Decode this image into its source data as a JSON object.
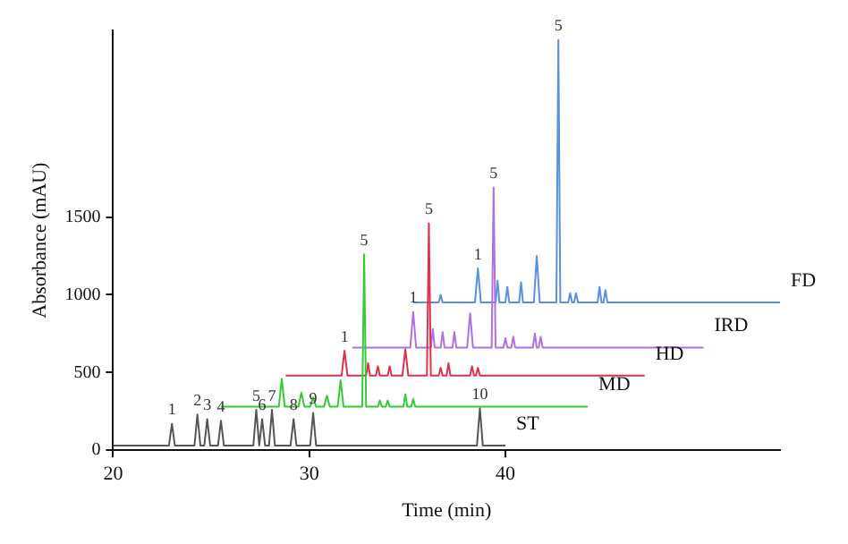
{
  "chart_data": {
    "type": "line",
    "xlabel": "Time (min)",
    "ylabel": "Absorbance (mAU)",
    "xlim": [
      20,
      54
    ],
    "xticks": [
      20,
      30,
      40
    ],
    "ylim": [
      0,
      2700
    ],
    "yticks": [
      0,
      500,
      1000,
      1500
    ],
    "grid": false,
    "legend": false,
    "marker": "none",
    "line_style": "solid",
    "series": [
      {
        "name": "ST",
        "color": "#555555",
        "x": [
          20,
          22.85,
          23,
          23.15,
          24.15,
          24.3,
          24.45,
          24.65,
          24.8,
          24.95,
          25.35,
          25.5,
          25.65,
          27.15,
          27.3,
          27.45,
          27.6,
          27.75,
          27.95,
          28.1,
          28.25,
          29.05,
          29.2,
          29.35,
          30.05,
          30.2,
          30.35,
          38.55,
          38.7,
          38.85,
          40
        ],
        "values": [
          30,
          30,
          170,
          30,
          30,
          230,
          30,
          30,
          200,
          30,
          30,
          190,
          30,
          30,
          260,
          30,
          200,
          30,
          30,
          260,
          30,
          30,
          200,
          30,
          30,
          240,
          30,
          30,
          270,
          30,
          30
        ]
      },
      {
        "name": "MD",
        "color": "#33cc33",
        "x": [
          25.5,
          28.45,
          28.6,
          28.75,
          29.45,
          29.6,
          29.75,
          30.05,
          30.2,
          30.35,
          30.75,
          30.9,
          31.05,
          31.45,
          31.6,
          31.75,
          32.7,
          32.8,
          32.9,
          33.5,
          33.6,
          33.7,
          33.9,
          34.0,
          34.1,
          34.8,
          34.9,
          35.0,
          35.2,
          35.3,
          35.4,
          44.2
        ],
        "values": [
          280,
          280,
          460,
          280,
          280,
          370,
          280,
          280,
          340,
          280,
          280,
          350,
          280,
          280,
          450,
          280,
          280,
          1260,
          280,
          280,
          320,
          280,
          280,
          320,
          280,
          280,
          360,
          280,
          280,
          330,
          280,
          280
        ]
      },
      {
        "name": "HD",
        "color": "#e0304a",
        "x": [
          28.8,
          31.65,
          31.8,
          31.95,
          32.9,
          33.0,
          33.1,
          33.4,
          33.5,
          33.6,
          34.0,
          34.1,
          34.2,
          34.75,
          34.9,
          35.05,
          36.0,
          36.1,
          36.2,
          36.6,
          36.7,
          36.8,
          37.0,
          37.1,
          37.2,
          38.2,
          38.3,
          38.4,
          38.5,
          38.6,
          38.7,
          47.1
        ],
        "values": [
          480,
          480,
          640,
          480,
          480,
          560,
          480,
          480,
          540,
          480,
          480,
          540,
          480,
          480,
          650,
          480,
          480,
          1460,
          480,
          480,
          530,
          480,
          480,
          560,
          480,
          480,
          540,
          480,
          480,
          530,
          480,
          480
        ]
      },
      {
        "name": "IRD",
        "color": "#b070e0",
        "x": [
          32.2,
          35.15,
          35.3,
          35.45,
          36.2,
          36.3,
          36.4,
          36.7,
          36.8,
          36.9,
          37.3,
          37.4,
          37.5,
          38.05,
          38.2,
          38.35,
          39.3,
          39.4,
          39.5,
          39.9,
          40.0,
          40.1,
          40.3,
          40.4,
          40.5,
          41.4,
          41.5,
          41.6,
          41.7,
          41.8,
          41.9,
          50.1
        ],
        "values": [
          660,
          660,
          890,
          660,
          660,
          780,
          660,
          660,
          760,
          660,
          660,
          760,
          660,
          660,
          880,
          660,
          660,
          1690,
          660,
          660,
          720,
          660,
          660,
          730,
          660,
          660,
          750,
          660,
          660,
          730,
          660,
          660
        ]
      },
      {
        "name": "FD",
        "color": "#5b8fe0",
        "x": [
          35.3,
          36.6,
          36.7,
          36.8,
          38.45,
          38.6,
          38.75,
          39.5,
          39.6,
          39.7,
          40.0,
          40.1,
          40.2,
          40.7,
          40.8,
          40.9,
          41.45,
          41.6,
          41.75,
          42.6,
          42.7,
          42.8,
          43.2,
          43.3,
          43.4,
          43.5,
          43.6,
          43.7,
          44.7,
          44.8,
          44.9,
          45.0,
          45.1,
          45.2,
          54
        ],
        "values": [
          950,
          950,
          1000,
          950,
          950,
          1170,
          950,
          950,
          1090,
          950,
          950,
          1050,
          950,
          950,
          1080,
          950,
          950,
          1250,
          950,
          950,
          2640,
          950,
          950,
          1010,
          950,
          950,
          1010,
          950,
          950,
          1050,
          950,
          950,
          1030,
          950,
          950
        ]
      }
    ],
    "annotations": [
      {
        "text": "1",
        "x": 23,
        "y": 170
      },
      {
        "text": "2",
        "x": 24.3,
        "y": 230
      },
      {
        "text": "3",
        "x": 24.8,
        "y": 200
      },
      {
        "text": "4",
        "x": 25.5,
        "y": 190
      },
      {
        "text": "5",
        "x": 27.3,
        "y": 260
      },
      {
        "text": "6",
        "x": 27.6,
        "y": 200
      },
      {
        "text": "7",
        "x": 28.1,
        "y": 260
      },
      {
        "text": "8",
        "x": 29.2,
        "y": 200
      },
      {
        "text": "9",
        "x": 30.2,
        "y": 240
      },
      {
        "text": "10",
        "x": 38.7,
        "y": 270
      },
      {
        "text": "5",
        "x": 32.8,
        "y": 1260
      },
      {
        "text": "5",
        "x": 36.1,
        "y": 1460
      },
      {
        "text": "5",
        "x": 39.4,
        "y": 1690
      },
      {
        "text": "5",
        "x": 42.7,
        "y": 2640
      },
      {
        "text": "1",
        "x": 31.8,
        "y": 640
      },
      {
        "text": "1",
        "x": 35.3,
        "y": 890
      },
      {
        "text": "1",
        "x": 38.6,
        "y": 1170
      }
    ]
  }
}
